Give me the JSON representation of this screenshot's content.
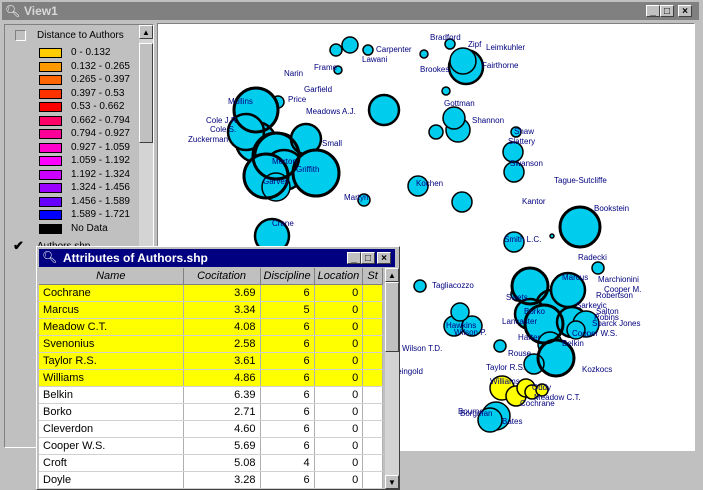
{
  "window": {
    "title": "View1"
  },
  "legend": {
    "theme_title": "Distance to Authors",
    "classes": [
      {
        "range": "0 - 0.132",
        "color": "#ffcc00"
      },
      {
        "range": "0.132 - 0.265",
        "color": "#ff9900"
      },
      {
        "range": "0.265 - 0.397",
        "color": "#ff6600"
      },
      {
        "range": "0.397 - 0.53",
        "color": "#ff3300"
      },
      {
        "range": "0.53 - 0.662",
        "color": "#ff0000"
      },
      {
        "range": "0.662 - 0.794",
        "color": "#ff0066"
      },
      {
        "range": "0.794 - 0.927",
        "color": "#ff0099"
      },
      {
        "range": "0.927 - 1.059",
        "color": "#ff00cc"
      },
      {
        "range": "1.059 - 1.192",
        "color": "#ff00ff"
      },
      {
        "range": "1.192 - 1.324",
        "color": "#cc00ff"
      },
      {
        "range": "1.324 - 1.456",
        "color": "#9900ff"
      },
      {
        "range": "1.456 - 1.589",
        "color": "#6600ff"
      },
      {
        "range": "1.589 - 1.721",
        "color": "#0000ff"
      },
      {
        "range": "No Data",
        "color": "#000000"
      }
    ],
    "layer_name": "Authors.shp"
  },
  "attribute_table": {
    "title": "Attributes of Authors.shp",
    "columns": [
      "Name",
      "Cocitation",
      "Discipline",
      "Location",
      "St"
    ],
    "rows": [
      {
        "name": "Cochrane",
        "cocitation": "3.69",
        "discipline": "6",
        "location": "0",
        "selected": true
      },
      {
        "name": "Marcus",
        "cocitation": "3.34",
        "discipline": "5",
        "location": "0",
        "selected": true
      },
      {
        "name": "Meadow C.T.",
        "cocitation": "4.08",
        "discipline": "6",
        "location": "0",
        "selected": true
      },
      {
        "name": "Svenonius",
        "cocitation": "2.58",
        "discipline": "6",
        "location": "0",
        "selected": true
      },
      {
        "name": "Taylor R.S.",
        "cocitation": "3.61",
        "discipline": "6",
        "location": "0",
        "selected": true
      },
      {
        "name": "Williams",
        "cocitation": "4.86",
        "discipline": "6",
        "location": "0",
        "selected": true
      },
      {
        "name": "Belkin",
        "cocitation": "6.39",
        "discipline": "6",
        "location": "0",
        "selected": false
      },
      {
        "name": "Borko",
        "cocitation": "2.71",
        "discipline": "6",
        "location": "0",
        "selected": false
      },
      {
        "name": "Cleverdon",
        "cocitation": "4.60",
        "discipline": "6",
        "location": "0",
        "selected": false
      },
      {
        "name": "Cooper W.S.",
        "cocitation": "5.69",
        "discipline": "6",
        "location": "0",
        "selected": false
      },
      {
        "name": "Croft",
        "cocitation": "5.08",
        "discipline": "4",
        "location": "0",
        "selected": false
      },
      {
        "name": "Doyle",
        "cocitation": "3.28",
        "discipline": "6",
        "location": "0",
        "selected": false
      }
    ]
  },
  "map": {
    "fill_color": "#00ccee",
    "selected_color": "#ffff00",
    "labels": [
      "Bradford",
      "Zipf",
      "Lawani",
      "Carpenter",
      "Leimkuhler",
      "Frame",
      "Brookes",
      "Fairthorne",
      "Narin",
      "Garfield",
      "Price",
      "Small",
      "Meadows A.J.",
      "Cole J.R.",
      "Cole S.",
      "Zuckerman",
      "Merton",
      "Garvey",
      "Crane",
      "Griffith",
      "Mullins",
      "Gottman",
      "Shannon",
      "Shaw",
      "Slattery",
      "Swanson",
      "Martyn",
      "Kochen",
      "Kantor",
      "Tague-Sutcliffe",
      "Bookstein",
      "Smith L.C.",
      "Radecki",
      "Marcus",
      "Robertson",
      "Salton",
      "Sparck Jones",
      "Belkin",
      "Harter",
      "Cooper W.S.",
      "Swets",
      "Lancaster",
      "Borko",
      "Tagliacozzo",
      "Hawkins",
      "Wilson P.",
      "Wilson T.D.",
      "Kleingold",
      "Rouse",
      "Taylor R.S.",
      "Williams",
      "Cochrane",
      "Meadow C.T.",
      "Bourne",
      "Oddy",
      "Kozkocs",
      "Bates",
      "Borgman",
      "Cooper M.",
      "Marchionini",
      "Sarkevic",
      "Robins"
    ]
  }
}
